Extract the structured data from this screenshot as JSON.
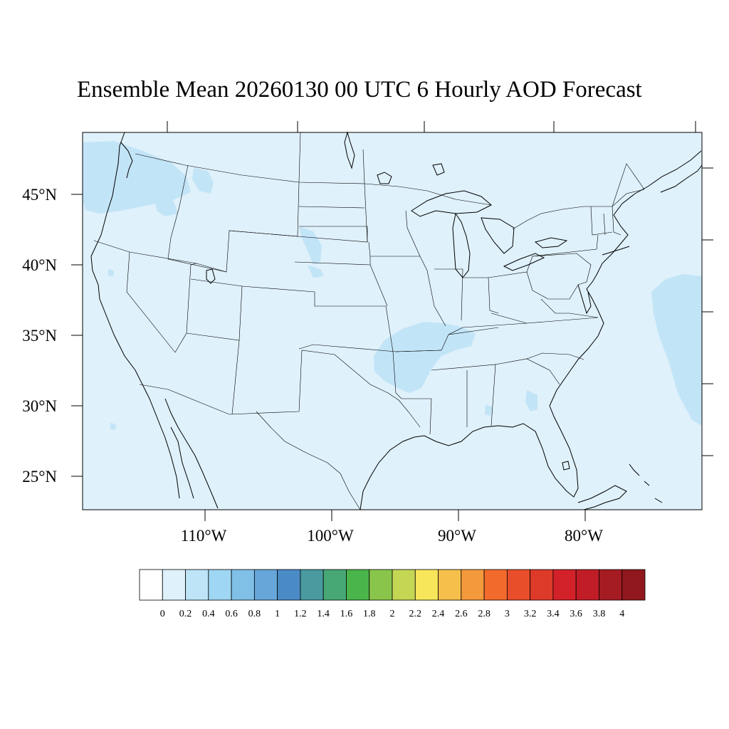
{
  "title": "Ensemble Mean 20260130 00 UTC 6 Hourly AOD Forecast",
  "map": {
    "background_color": "#dff1fb",
    "plume_color": "#c2e4f7",
    "lat_labels": [
      "45°N",
      "40°N",
      "35°N",
      "30°N",
      "25°N"
    ],
    "lon_labels": [
      "110°W",
      "100°W",
      "90°W",
      "80°W"
    ]
  },
  "colorbar": {
    "levels": [
      "0",
      "0.2",
      "0.4",
      "0.6",
      "0.8",
      "1",
      "1.2",
      "1.4",
      "1.6",
      "1.8",
      "2",
      "2.2",
      "2.4",
      "2.6",
      "2.8",
      "3",
      "3.2",
      "3.4",
      "3.6",
      "3.8",
      "4"
    ],
    "colors": [
      "#ffffff",
      "#dff1fb",
      "#bde4f7",
      "#9fd6f3",
      "#80bfe6",
      "#67a6d9",
      "#4a8bc6",
      "#4a9a9f",
      "#47a876",
      "#4ab54a",
      "#89c54b",
      "#c5d654",
      "#f7e65a",
      "#f6bf4b",
      "#f59a3c",
      "#f26b2c",
      "#e94e2b",
      "#dd3a2a",
      "#d32129",
      "#c01d27",
      "#a51b22",
      "#8f171d"
    ]
  }
}
